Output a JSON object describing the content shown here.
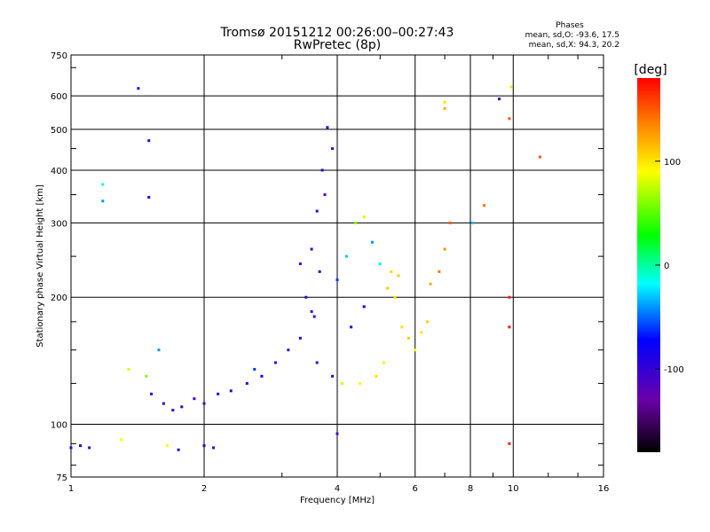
{
  "title": "Tromsø 20151212 00:26:00–00:27:43",
  "subtitle": "RwPretec (8p)",
  "phases": {
    "heading": "Phases",
    "line_o": "mean, sd,O:  -93.6, 17.5",
    "line_x": "mean, sd,X:  94.3, 20.2"
  },
  "colorbar": {
    "label": "[deg]",
    "ticks": [
      {
        "value": 100,
        "label": "100"
      },
      {
        "value": 0,
        "label": "0"
      },
      {
        "value": -100,
        "label": "-100"
      }
    ],
    "range": [
      -180,
      180
    ],
    "colors": [
      "#000000",
      "#6a00a8",
      "#0000ff",
      "#00ffff",
      "#00ff00",
      "#ffff00",
      "#ff8000",
      "#ff0000"
    ]
  },
  "chart_data": {
    "type": "scatter",
    "xlabel": "Frequency [MHz]",
    "ylabel": "Stationary phase Virtual Height [km]",
    "xscale": "log",
    "yscale": "log",
    "xlim": [
      1,
      16
    ],
    "ylim": [
      75,
      750
    ],
    "xticks": [
      {
        "value": 1,
        "label": "1"
      },
      {
        "value": 2,
        "label": "2"
      },
      {
        "value": 4,
        "label": "4"
      },
      {
        "value": 6,
        "label": "6"
      },
      {
        "value": 8,
        "label": "8"
      },
      {
        "value": 10,
        "label": "10"
      },
      {
        "value": 16,
        "label": "16"
      }
    ],
    "yticks": [
      {
        "value": 75,
        "label": "75"
      },
      {
        "value": 100,
        "label": "100"
      },
      {
        "value": 200,
        "label": "200"
      },
      {
        "value": 300,
        "label": "300"
      },
      {
        "value": 400,
        "label": "400"
      },
      {
        "value": 500,
        "label": "500"
      },
      {
        "value": 600,
        "label": "600"
      },
      {
        "value": 750,
        "label": "750"
      }
    ],
    "grid": true,
    "color_variable": "phase [deg]",
    "points": [
      [
        1.0,
        88,
        -95
      ],
      [
        1.05,
        89,
        -90
      ],
      [
        1.1,
        88,
        -100
      ],
      [
        1.3,
        92,
        90
      ],
      [
        1.18,
        338,
        -40
      ],
      [
        1.18,
        370,
        -20
      ],
      [
        1.42,
        625,
        -95
      ],
      [
        1.5,
        470,
        -100
      ],
      [
        1.5,
        345,
        -95
      ],
      [
        1.58,
        150,
        -40
      ],
      [
        1.35,
        135,
        80
      ],
      [
        1.48,
        130,
        60
      ],
      [
        1.52,
        118,
        -105
      ],
      [
        1.62,
        112,
        -100
      ],
      [
        1.7,
        108,
        -95
      ],
      [
        1.78,
        110,
        -100
      ],
      [
        1.9,
        115,
        -105
      ],
      [
        2.0,
        112,
        -110
      ],
      [
        2.15,
        118,
        -100
      ],
      [
        2.3,
        120,
        -90
      ],
      [
        2.5,
        125,
        -100
      ],
      [
        2.7,
        130,
        -80
      ],
      [
        2.9,
        140,
        -100
      ],
      [
        3.1,
        150,
        -110
      ],
      [
        3.3,
        160,
        -90
      ],
      [
        3.4,
        200,
        -100
      ],
      [
        3.5,
        260,
        -110
      ],
      [
        3.6,
        320,
        -105
      ],
      [
        3.7,
        400,
        -100
      ],
      [
        3.8,
        505,
        -100
      ],
      [
        3.9,
        450,
        -110
      ],
      [
        3.75,
        350,
        -120
      ],
      [
        3.65,
        230,
        -95
      ],
      [
        3.55,
        180,
        -100
      ],
      [
        4.0,
        220,
        -60
      ],
      [
        4.2,
        250,
        -30
      ],
      [
        4.4,
        300,
        60
      ],
      [
        4.6,
        310,
        80
      ],
      [
        4.8,
        270,
        -40
      ],
      [
        5.0,
        240,
        -20
      ],
      [
        5.2,
        210,
        110
      ],
      [
        5.4,
        200,
        100
      ],
      [
        5.6,
        170,
        100
      ],
      [
        5.8,
        160,
        110
      ],
      [
        6.0,
        150,
        90
      ],
      [
        6.2,
        165,
        100
      ],
      [
        6.4,
        175,
        110
      ],
      [
        5.1,
        140,
        95
      ],
      [
        4.9,
        130,
        100
      ],
      [
        4.5,
        125,
        90
      ],
      [
        4.1,
        125,
        100
      ],
      [
        3.9,
        130,
        -100
      ],
      [
        3.6,
        140,
        -110
      ],
      [
        6.5,
        215,
        120
      ],
      [
        6.8,
        230,
        140
      ],
      [
        7.0,
        260,
        130
      ],
      [
        7.2,
        300,
        150
      ],
      [
        7.0,
        560,
        120
      ],
      [
        7.0,
        580,
        100
      ],
      [
        8.1,
        300,
        -30
      ],
      [
        8.6,
        330,
        140
      ],
      [
        9.3,
        590,
        -100
      ],
      [
        9.9,
        630,
        100
      ],
      [
        9.8,
        530,
        150
      ],
      [
        9.8,
        200,
        170
      ],
      [
        9.8,
        170,
        175
      ],
      [
        9.8,
        90,
        170
      ],
      [
        11.5,
        430,
        150
      ],
      [
        4.0,
        95,
        -110
      ],
      [
        1.65,
        89,
        90
      ],
      [
        1.75,
        87,
        -100
      ],
      [
        2.0,
        89,
        -90
      ],
      [
        2.1,
        88,
        -95
      ],
      [
        3.5,
        185,
        -100
      ],
      [
        3.3,
        240,
        -110
      ],
      [
        4.3,
        170,
        -80
      ],
      [
        4.6,
        190,
        -70
      ],
      [
        5.3,
        230,
        105
      ],
      [
        5.5,
        225,
        110
      ],
      [
        2.6,
        135,
        -60
      ]
    ]
  }
}
